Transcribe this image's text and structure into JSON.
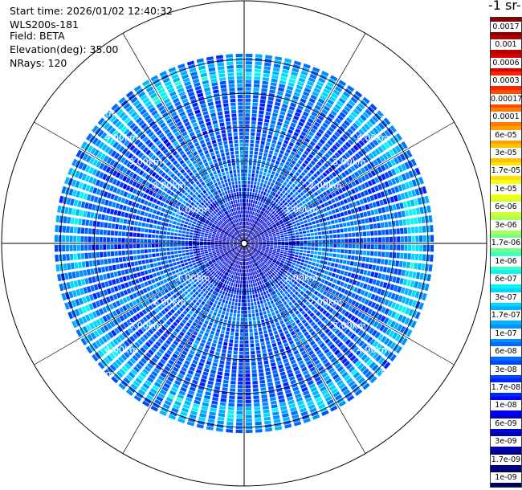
{
  "info": {
    "start_time": "Start time: 2026/01/02 12:40:32",
    "instrument": "WLS200s-181",
    "field": "Field: BETA",
    "elevation": "Elevation(deg): 35.00",
    "nrays": "NRays: 120"
  },
  "colorbar": {
    "unit_title": "-1 sr-",
    "labels": [
      "0.0017",
      "0.001",
      "0.0006",
      "0.0003",
      "0.00017",
      "0.0001",
      "6e-05",
      "3e-05",
      "1.7e-05",
      "1e-05",
      "6e-06",
      "3e-06",
      "1.7e-06",
      "1e-06",
      "6e-07",
      "3e-07",
      "1.7e-07",
      "1e-07",
      "6e-08",
      "3e-08",
      "1.7e-08",
      "1e-08",
      "6e-09",
      "3e-09",
      "1.7e-09",
      "1e-09"
    ],
    "colors": [
      "#8b0000",
      "#b40000",
      "#dd0000",
      "#ff2400",
      "#ff4d00",
      "#ff7a00",
      "#ffa000",
      "#ffc300",
      "#ffe000",
      "#f5ff10",
      "#d4ff2c",
      "#a6ff5a",
      "#72ff8c",
      "#3cffc2",
      "#10f4ef",
      "#00d8ff",
      "#00b4ff",
      "#0090ff",
      "#006cff",
      "#0048ff",
      "#0024ff",
      "#0000ff",
      "#0000d8",
      "#0000b0",
      "#000088",
      "#000060"
    ]
  },
  "chart_data": {
    "type": "ppi",
    "nrays": 120,
    "elevation_deg": 35.0,
    "max_range_km": 5.5,
    "ring_labels": [
      "1.00km",
      "2.00km",
      "3.00km",
      "4.00km",
      "5.00km"
    ],
    "field_profile_log10_beta": [
      {
        "range_km": 0.0,
        "value": -8.5
      },
      {
        "range_km": 0.4,
        "value": -8.3
      },
      {
        "range_km": 1.0,
        "value": -8.0
      },
      {
        "range_km": 1.6,
        "value": -7.6
      },
      {
        "range_km": 2.2,
        "value": -7.2
      },
      {
        "range_km": 3.0,
        "value": -7.4
      },
      {
        "range_km": 4.0,
        "value": -7.4
      },
      {
        "range_km": 4.7,
        "value": -7.3
      },
      {
        "range_km": 5.0,
        "value": -6.5
      },
      {
        "range_km": 5.5,
        "value": -7.2
      }
    ]
  }
}
